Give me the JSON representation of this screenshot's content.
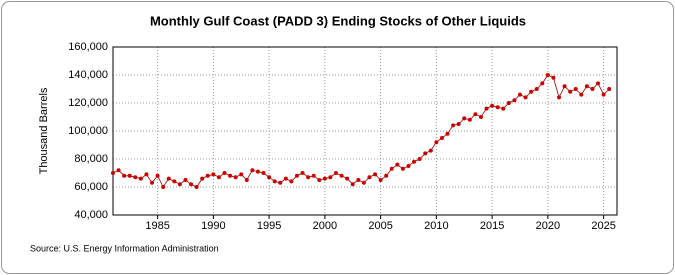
{
  "chart_data": {
    "type": "line",
    "title": "Monthly Gulf Coast (PADD 3) Ending Stocks of Other Liquids",
    "y_label": "Thousand Barrels",
    "source": "Source: U.S. Energy Information Administration",
    "x": [
      1981.0,
      1981.5,
      1982.0,
      1982.5,
      1983.0,
      1983.5,
      1984.0,
      1984.5,
      1985.0,
      1985.5,
      1986.0,
      1986.5,
      1987.0,
      1987.5,
      1988.0,
      1988.5,
      1989.0,
      1989.5,
      1990.0,
      1990.5,
      1991.0,
      1991.5,
      1992.0,
      1992.5,
      1993.0,
      1993.5,
      1994.0,
      1994.5,
      1995.0,
      1995.5,
      1996.0,
      1996.5,
      1997.0,
      1997.5,
      1998.0,
      1998.5,
      1999.0,
      1999.5,
      2000.0,
      2000.5,
      2001.0,
      2001.5,
      2002.0,
      2002.5,
      2003.0,
      2003.5,
      2004.0,
      2004.5,
      2005.0,
      2005.5,
      2006.0,
      2006.5,
      2007.0,
      2007.5,
      2008.0,
      2008.5,
      2009.0,
      2009.5,
      2010.0,
      2010.5,
      2011.0,
      2011.5,
      2012.0,
      2012.5,
      2013.0,
      2013.5,
      2014.0,
      2014.5,
      2015.0,
      2015.5,
      2016.0,
      2016.5,
      2017.0,
      2017.5,
      2018.0,
      2018.5,
      2019.0,
      2019.5,
      2020.0,
      2020.5,
      2021.0,
      2021.5,
      2022.0,
      2022.5,
      2023.0,
      2023.5,
      2024.0,
      2024.5,
      2025.0,
      2025.5
    ],
    "series": [
      {
        "name": "Ending Stocks",
        "color": "#cc0000",
        "values": [
          70000,
          72000,
          68000,
          68000,
          67000,
          66000,
          69000,
          63000,
          68000,
          60000,
          66000,
          64000,
          62000,
          65000,
          62000,
          60000,
          66000,
          68000,
          69000,
          67000,
          70000,
          68000,
          67000,
          69000,
          65000,
          72000,
          71000,
          70000,
          67000,
          64000,
          63000,
          66000,
          64000,
          68000,
          70000,
          67000,
          68000,
          65000,
          66000,
          67000,
          70000,
          68000,
          66000,
          62000,
          65000,
          63000,
          67000,
          69000,
          65000,
          68000,
          73000,
          76000,
          73000,
          75000,
          78000,
          80000,
          84000,
          86000,
          92000,
          95000,
          98000,
          104000,
          105000,
          109000,
          108000,
          112000,
          110000,
          116000,
          118000,
          117000,
          116000,
          120000,
          122000,
          126000,
          124000,
          128000,
          130000,
          134000,
          140000,
          138000,
          124000,
          132000,
          128000,
          130000,
          126000,
          132000,
          130000,
          134000,
          126000,
          130000
        ]
      }
    ],
    "xlim": [
      1981,
      2026.2
    ],
    "ylim": [
      40000,
      160000
    ],
    "xticks": [
      1985,
      1990,
      1995,
      2000,
      2005,
      2010,
      2015,
      2020,
      2025
    ],
    "yticks": [
      {
        "value": 40000,
        "label": "40,000"
      },
      {
        "value": 60000,
        "label": "60,000"
      },
      {
        "value": 80000,
        "label": "80,000"
      },
      {
        "value": 100000,
        "label": "100,000"
      },
      {
        "value": 120000,
        "label": "120,000"
      },
      {
        "value": 140000,
        "label": "140,000"
      },
      {
        "value": 160000,
        "label": "160,000"
      }
    ],
    "grid": true
  }
}
